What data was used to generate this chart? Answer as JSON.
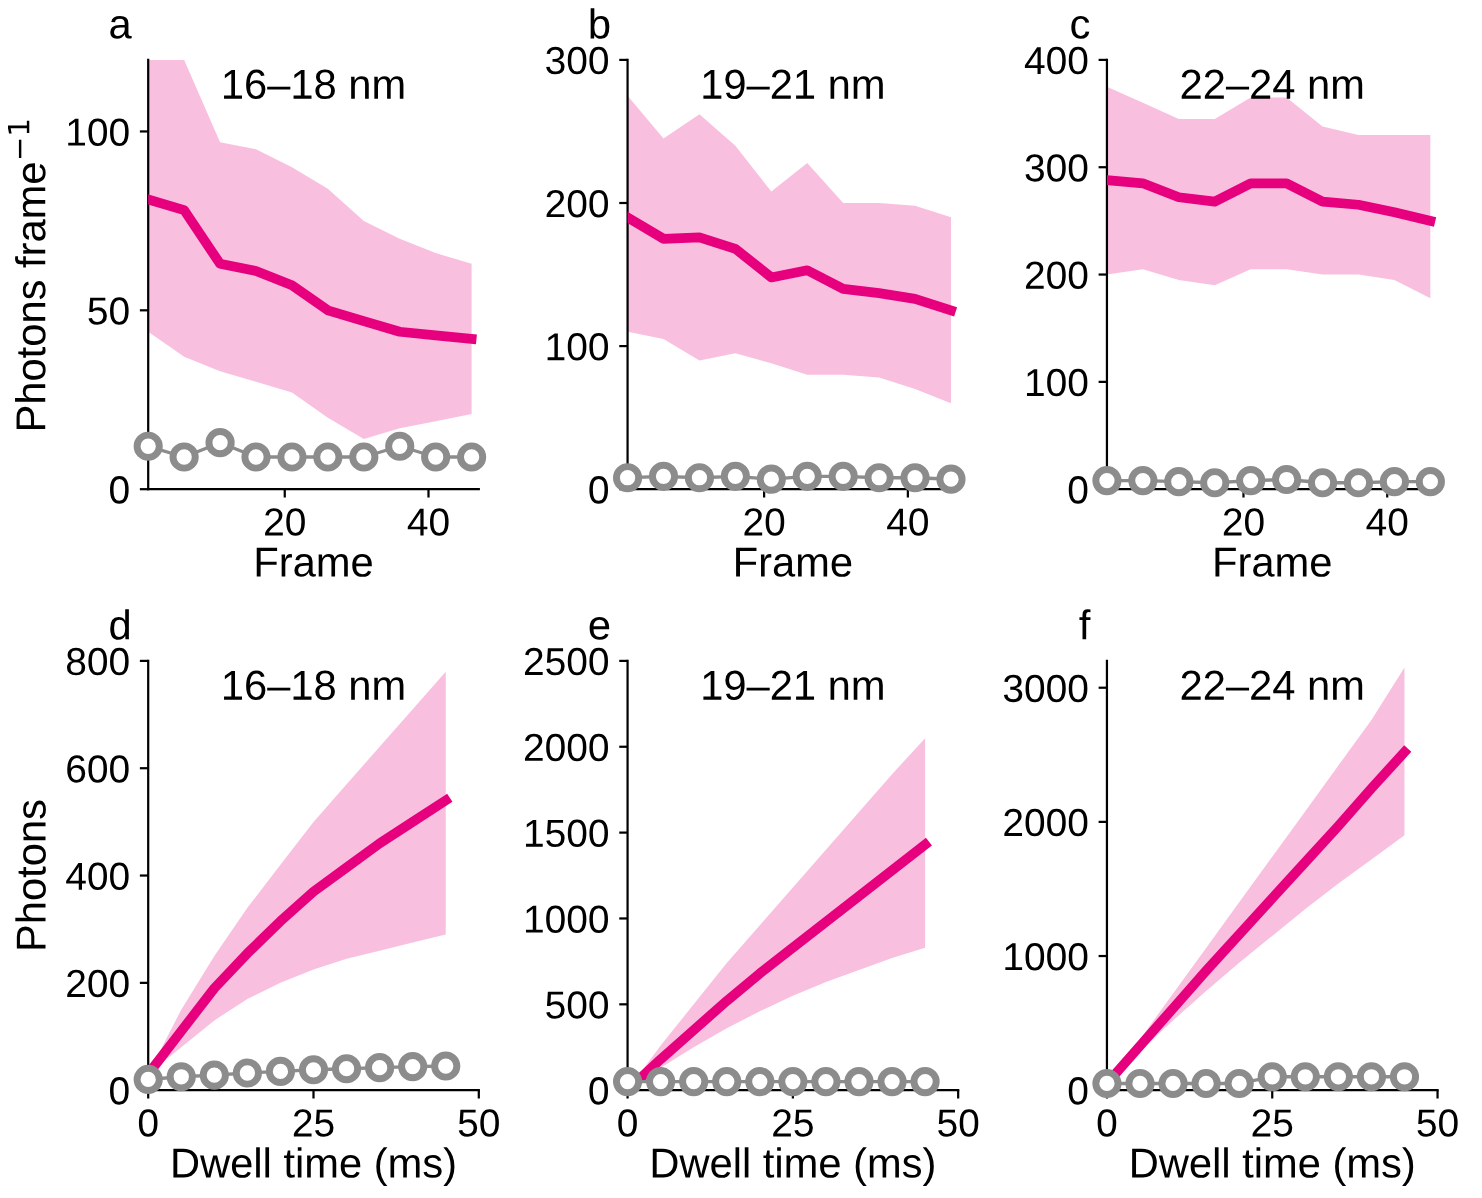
{
  "chart_data": [
    {
      "type": "line",
      "title": "16–18 nm",
      "xlabel": "Frame",
      "ylabel": "Photons frame$^{−1}$",
      "annotations": [
        "a"
      ],
      "x": [
        1,
        6,
        11,
        16,
        21,
        26,
        31,
        36,
        41,
        46
      ],
      "xlim": [
        1,
        47
      ],
      "xticks": [
        20,
        40
      ],
      "ylim": [
        0,
        120
      ],
      "yticks": [
        0,
        50,
        100
      ],
      "series": [
        {
          "color": "#e6007e",
          "values": [
            81,
            78,
            63,
            61,
            57,
            50,
            47,
            44,
            43,
            42
          ],
          "lower": [
            44,
            37,
            33,
            30,
            27,
            20,
            14,
            17,
            19,
            21
          ],
          "upper": [
            120,
            120,
            97,
            95,
            90,
            84,
            75,
            70,
            66,
            63
          ]
        },
        {
          "color": "#8c8c8c",
          "marker": "circle",
          "values": [
            12,
            9,
            13,
            9,
            9,
            9,
            9,
            12,
            9,
            9
          ]
        }
      ]
    },
    {
      "type": "line",
      "title": "19–21 nm",
      "xlabel": "Frame",
      "annotations": [
        "b"
      ],
      "x": [
        1,
        6,
        11,
        16,
        21,
        26,
        31,
        36,
        41,
        46
      ],
      "xlim": [
        1,
        47
      ],
      "xticks": [
        20,
        40
      ],
      "ylim": [
        0,
        300
      ],
      "yticks": [
        0,
        100,
        200,
        300
      ],
      "series": [
        {
          "color": "#e6007e",
          "values": [
            190,
            175,
            176,
            168,
            148,
            153,
            140,
            137,
            133,
            125
          ],
          "lower": [
            110,
            105,
            90,
            95,
            88,
            80,
            80,
            78,
            70,
            60
          ],
          "upper": [
            275,
            245,
            262,
            240,
            208,
            228,
            200,
            200,
            198,
            190
          ]
        },
        {
          "color": "#8c8c8c",
          "marker": "circle",
          "values": [
            8,
            9,
            8,
            9,
            7,
            9,
            9,
            8,
            8,
            7
          ]
        }
      ]
    },
    {
      "type": "line",
      "title": "22–24 nm",
      "xlabel": "Frame",
      "annotations": [
        "c"
      ],
      "x": [
        1,
        6,
        11,
        16,
        21,
        26,
        31,
        36,
        41,
        46
      ],
      "xlim": [
        1,
        47
      ],
      "xticks": [
        20,
        40
      ],
      "ylim": [
        0,
        400
      ],
      "yticks": [
        0,
        100,
        200,
        300,
        400
      ],
      "series": [
        {
          "color": "#e6007e",
          "values": [
            288,
            285,
            272,
            268,
            285,
            285,
            268,
            265,
            258,
            250
          ],
          "lower": [
            200,
            205,
            195,
            190,
            205,
            205,
            200,
            200,
            195,
            178
          ],
          "upper": [
            375,
            360,
            345,
            345,
            365,
            365,
            338,
            330,
            330,
            330
          ]
        },
        {
          "color": "#8c8c8c",
          "marker": "circle",
          "values": [
            8,
            8,
            7,
            6,
            8,
            9,
            6,
            6,
            7,
            7
          ]
        }
      ]
    },
    {
      "type": "line",
      "title": "16–18 nm",
      "xlabel": "Dwell time (ms)",
      "ylabel": "Photons",
      "annotations": [
        "d"
      ],
      "x": [
        0,
        5,
        10,
        15,
        20,
        25,
        30,
        35,
        40,
        45
      ],
      "xlim": [
        0,
        50
      ],
      "xticks": [
        0,
        25,
        50
      ],
      "ylim": [
        0,
        800
      ],
      "yticks": [
        0,
        200,
        400,
        600,
        800
      ],
      "series": [
        {
          "color": "#e6007e",
          "values": [
            30,
            110,
            190,
            255,
            315,
            370,
            415,
            460,
            500,
            540
          ],
          "lower": [
            30,
            80,
            130,
            170,
            200,
            225,
            245,
            260,
            275,
            290
          ],
          "upper": [
            30,
            150,
            250,
            340,
            420,
            500,
            570,
            640,
            710,
            780
          ]
        },
        {
          "color": "#8c8c8c",
          "marker": "circle",
          "values": [
            20,
            25,
            28,
            32,
            35,
            38,
            40,
            42,
            44,
            45
          ]
        }
      ]
    },
    {
      "type": "line",
      "title": "19–21 nm",
      "xlabel": "Dwell time (ms)",
      "annotations": [
        "e"
      ],
      "x": [
        0,
        5,
        10,
        15,
        20,
        25,
        30,
        35,
        40,
        45
      ],
      "xlim": [
        0,
        50
      ],
      "xticks": [
        0,
        25,
        50
      ],
      "ylim": [
        0,
        2500
      ],
      "yticks": [
        0,
        500,
        1000,
        1500,
        2000,
        2500
      ],
      "series": [
        {
          "color": "#e6007e",
          "values": [
            0,
            180,
            350,
            520,
            680,
            830,
            980,
            1130,
            1280,
            1430
          ],
          "lower": [
            0,
            130,
            250,
            360,
            460,
            550,
            630,
            700,
            770,
            830
          ],
          "upper": [
            0,
            260,
            500,
            740,
            960,
            1180,
            1400,
            1620,
            1840,
            2050
          ]
        },
        {
          "color": "#8c8c8c",
          "marker": "circle",
          "values": [
            50,
            50,
            50,
            50,
            50,
            50,
            50,
            50,
            50,
            50
          ]
        }
      ]
    },
    {
      "type": "line",
      "title": "22–24 nm",
      "xlabel": "Dwell time (ms)",
      "annotations": [
        "f"
      ],
      "x": [
        0,
        5,
        10,
        15,
        20,
        25,
        30,
        35,
        40,
        45
      ],
      "xlim": [
        0,
        50
      ],
      "xticks": [
        0,
        25,
        50
      ],
      "ylim": [
        0,
        3200
      ],
      "yticks": [
        0,
        1000,
        2000,
        3000
      ],
      "series": [
        {
          "color": "#e6007e",
          "values": [
            50,
            330,
            610,
            890,
            1160,
            1430,
            1700,
            1970,
            2250,
            2520
          ],
          "lower": [
            50,
            290,
            520,
            740,
            950,
            1150,
            1350,
            1540,
            1720,
            1900
          ],
          "upper": [
            50,
            380,
            720,
            1060,
            1400,
            1740,
            2080,
            2420,
            2760,
            3150
          ]
        },
        {
          "color": "#8c8c8c",
          "marker": "circle",
          "values": [
            50,
            50,
            50,
            50,
            50,
            100,
            100,
            100,
            100,
            100
          ]
        }
      ]
    }
  ]
}
